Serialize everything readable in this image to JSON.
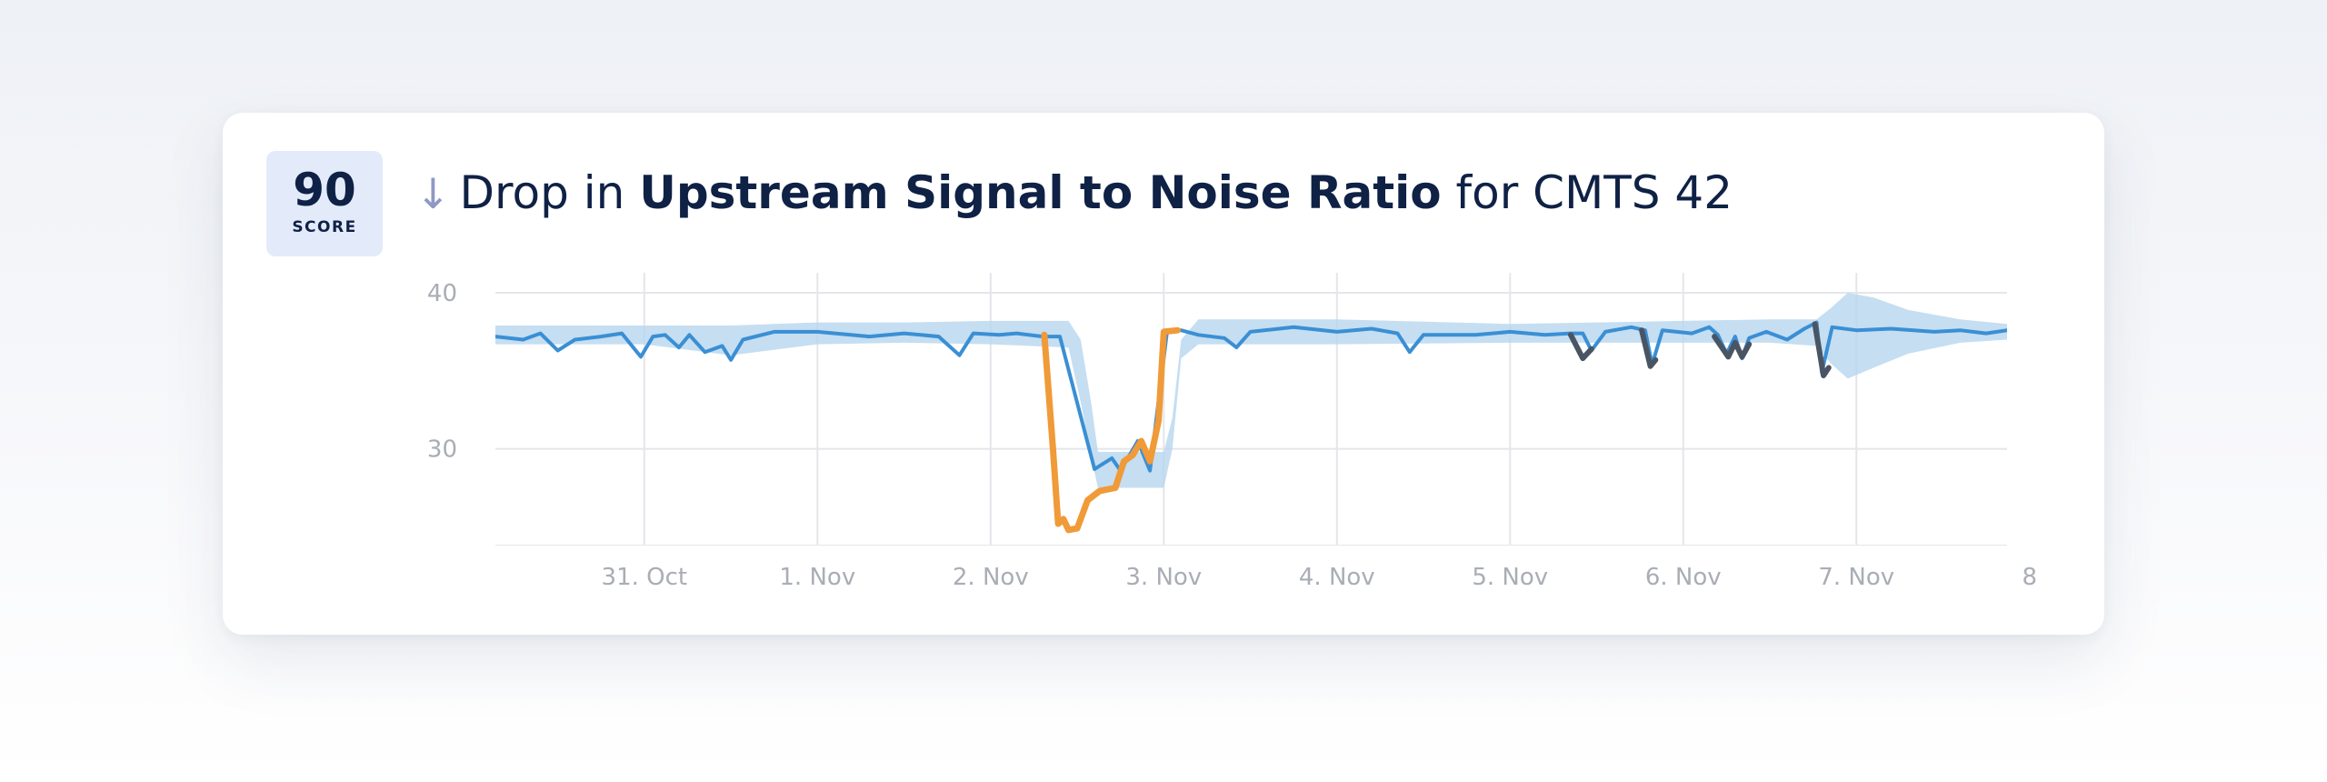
{
  "score": {
    "value": "90",
    "label": "SCORE"
  },
  "headline": {
    "arrow_icon": "arrow-down-icon",
    "prefix": "Drop in",
    "metric": "Upstream Signal to Noise Ratio",
    "suffix": "for CMTS 42"
  },
  "colors": {
    "title": "#0f2145",
    "score_bg": "#e3ebfb",
    "line": "#3a8fd4",
    "band": "#b7d6ef",
    "anomaly_major": "#f09a38",
    "anomaly_minor": "#4a5564"
  },
  "chart_data": {
    "type": "line",
    "x_unit": "date",
    "x_tick_labels": [
      "31. Oct",
      "1. Nov",
      "2. Nov",
      "3. Nov",
      "4. Nov",
      "5. Nov",
      "6. Nov",
      "7. Nov",
      "8"
    ],
    "x_tick_days": [
      31,
      32,
      33,
      34,
      35,
      36,
      37,
      38,
      39
    ],
    "y_tick_labels": [
      "40",
      "30"
    ],
    "y_ticks": [
      40,
      30
    ],
    "ylim": [
      23.8,
      40.7
    ],
    "xlim": [
      30.14,
      38.87
    ],
    "grid": true,
    "legend": "none",
    "series": [
      {
        "kind": "line",
        "color": "#3a8fd4",
        "values": [
          [
            30.14,
            37.2
          ],
          [
            30.3,
            37.0
          ],
          [
            30.4,
            37.4
          ],
          [
            30.5,
            36.3
          ],
          [
            30.6,
            37.0
          ],
          [
            30.75,
            37.2
          ],
          [
            30.87,
            37.4
          ],
          [
            30.98,
            35.9
          ],
          [
            31.05,
            37.2
          ],
          [
            31.12,
            37.3
          ],
          [
            31.2,
            36.5
          ],
          [
            31.26,
            37.3
          ],
          [
            31.35,
            36.2
          ],
          [
            31.45,
            36.6
          ],
          [
            31.5,
            35.7
          ],
          [
            31.57,
            37.0
          ],
          [
            31.75,
            37.5
          ],
          [
            32.0,
            37.5
          ],
          [
            32.3,
            37.2
          ],
          [
            32.5,
            37.4
          ],
          [
            32.7,
            37.2
          ],
          [
            32.82,
            36.0
          ],
          [
            32.9,
            37.4
          ],
          [
            33.05,
            37.3
          ],
          [
            33.15,
            37.4
          ],
          [
            33.3,
            37.2
          ],
          [
            33.4,
            37.2
          ],
          [
            33.6,
            28.7
          ],
          [
            33.7,
            29.4
          ],
          [
            33.75,
            28.6
          ],
          [
            33.85,
            30.5
          ],
          [
            33.92,
            28.6
          ],
          [
            34.02,
            37.6
          ],
          [
            34.1,
            37.6
          ],
          [
            34.2,
            37.3
          ],
          [
            34.35,
            37.1
          ],
          [
            34.42,
            36.5
          ],
          [
            34.5,
            37.5
          ],
          [
            34.75,
            37.8
          ],
          [
            35.0,
            37.5
          ],
          [
            35.2,
            37.7
          ],
          [
            35.35,
            37.4
          ],
          [
            35.42,
            36.2
          ],
          [
            35.5,
            37.3
          ],
          [
            35.8,
            37.3
          ],
          [
            36.0,
            37.5
          ],
          [
            36.2,
            37.3
          ],
          [
            36.35,
            37.4
          ],
          [
            36.42,
            37.4
          ],
          [
            36.47,
            36.3
          ],
          [
            36.55,
            37.5
          ],
          [
            36.7,
            37.8
          ],
          [
            36.78,
            37.6
          ],
          [
            36.82,
            35.4
          ],
          [
            36.88,
            37.6
          ],
          [
            37.05,
            37.4
          ],
          [
            37.15,
            37.8
          ],
          [
            37.2,
            37.3
          ],
          [
            37.25,
            36.1
          ],
          [
            37.3,
            37.2
          ],
          [
            37.34,
            35.8
          ],
          [
            37.38,
            37.1
          ],
          [
            37.48,
            37.5
          ],
          [
            37.6,
            37.0
          ],
          [
            37.7,
            37.7
          ],
          [
            37.77,
            38.1
          ],
          [
            37.8,
            34.9
          ],
          [
            37.86,
            37.8
          ],
          [
            38.0,
            37.6
          ],
          [
            38.2,
            37.7
          ],
          [
            38.45,
            37.5
          ],
          [
            38.6,
            37.6
          ],
          [
            38.75,
            37.4
          ],
          [
            38.87,
            37.6
          ]
        ]
      },
      {
        "kind": "band",
        "color": "#b7d6ef",
        "values": [
          [
            30.14,
            37.9,
            36.7
          ],
          [
            30.5,
            37.9,
            36.7
          ],
          [
            31.0,
            37.9,
            36.7
          ],
          [
            31.5,
            37.9,
            36.0
          ],
          [
            32.0,
            38.1,
            36.7
          ],
          [
            32.5,
            38.1,
            36.8
          ],
          [
            33.0,
            38.2,
            36.7
          ],
          [
            33.45,
            38.2,
            36.5
          ],
          [
            33.52,
            37.0,
            33.0
          ],
          [
            33.58,
            33.0,
            29.5
          ],
          [
            33.62,
            29.8,
            27.5
          ],
          [
            34.0,
            29.8,
            27.5
          ],
          [
            34.05,
            32.0,
            30.0
          ],
          [
            34.1,
            37.0,
            35.8
          ],
          [
            34.2,
            38.3,
            36.7
          ],
          [
            35.0,
            38.3,
            36.7
          ],
          [
            36.0,
            38.0,
            36.8
          ],
          [
            37.0,
            38.2,
            36.8
          ],
          [
            37.5,
            38.3,
            36.8
          ],
          [
            37.77,
            38.3,
            36.6
          ],
          [
            37.85,
            39.0,
            35.5
          ],
          [
            37.95,
            40.0,
            34.5
          ],
          [
            38.1,
            39.7,
            35.2
          ],
          [
            38.3,
            38.9,
            36.1
          ],
          [
            38.6,
            38.3,
            36.8
          ],
          [
            38.87,
            38.0,
            37.0
          ]
        ]
      },
      {
        "kind": "anomaly",
        "color": "#f09a38",
        "values": [
          [
            33.31,
            37.3
          ],
          [
            33.36,
            30.0
          ],
          [
            33.39,
            25.2
          ],
          [
            33.42,
            25.5
          ],
          [
            33.45,
            24.8
          ],
          [
            33.5,
            24.9
          ],
          [
            33.56,
            26.7
          ],
          [
            33.63,
            27.3
          ],
          [
            33.72,
            27.5
          ],
          [
            33.77,
            29.2
          ],
          [
            33.82,
            29.6
          ],
          [
            33.87,
            30.5
          ],
          [
            33.92,
            29.2
          ],
          [
            33.97,
            31.8
          ],
          [
            34.0,
            37.5
          ],
          [
            34.08,
            37.6
          ]
        ]
      },
      {
        "kind": "anomaly",
        "color": "#4a5564",
        "values": [
          [
            36.35,
            37.3
          ],
          [
            36.42,
            35.8
          ],
          [
            36.47,
            36.4
          ]
        ]
      },
      {
        "kind": "anomaly",
        "color": "#4a5564",
        "values": [
          [
            36.76,
            37.6
          ],
          [
            36.81,
            35.3
          ],
          [
            36.84,
            35.7
          ]
        ]
      },
      {
        "kind": "anomaly",
        "color": "#4a5564",
        "values": [
          [
            37.18,
            37.2
          ],
          [
            37.26,
            35.9
          ],
          [
            37.3,
            36.8
          ],
          [
            37.34,
            35.9
          ],
          [
            37.38,
            36.7
          ]
        ]
      },
      {
        "kind": "anomaly",
        "color": "#4a5564",
        "values": [
          [
            37.76,
            38.0
          ],
          [
            37.81,
            34.7
          ],
          [
            37.84,
            35.2
          ]
        ]
      }
    ]
  }
}
